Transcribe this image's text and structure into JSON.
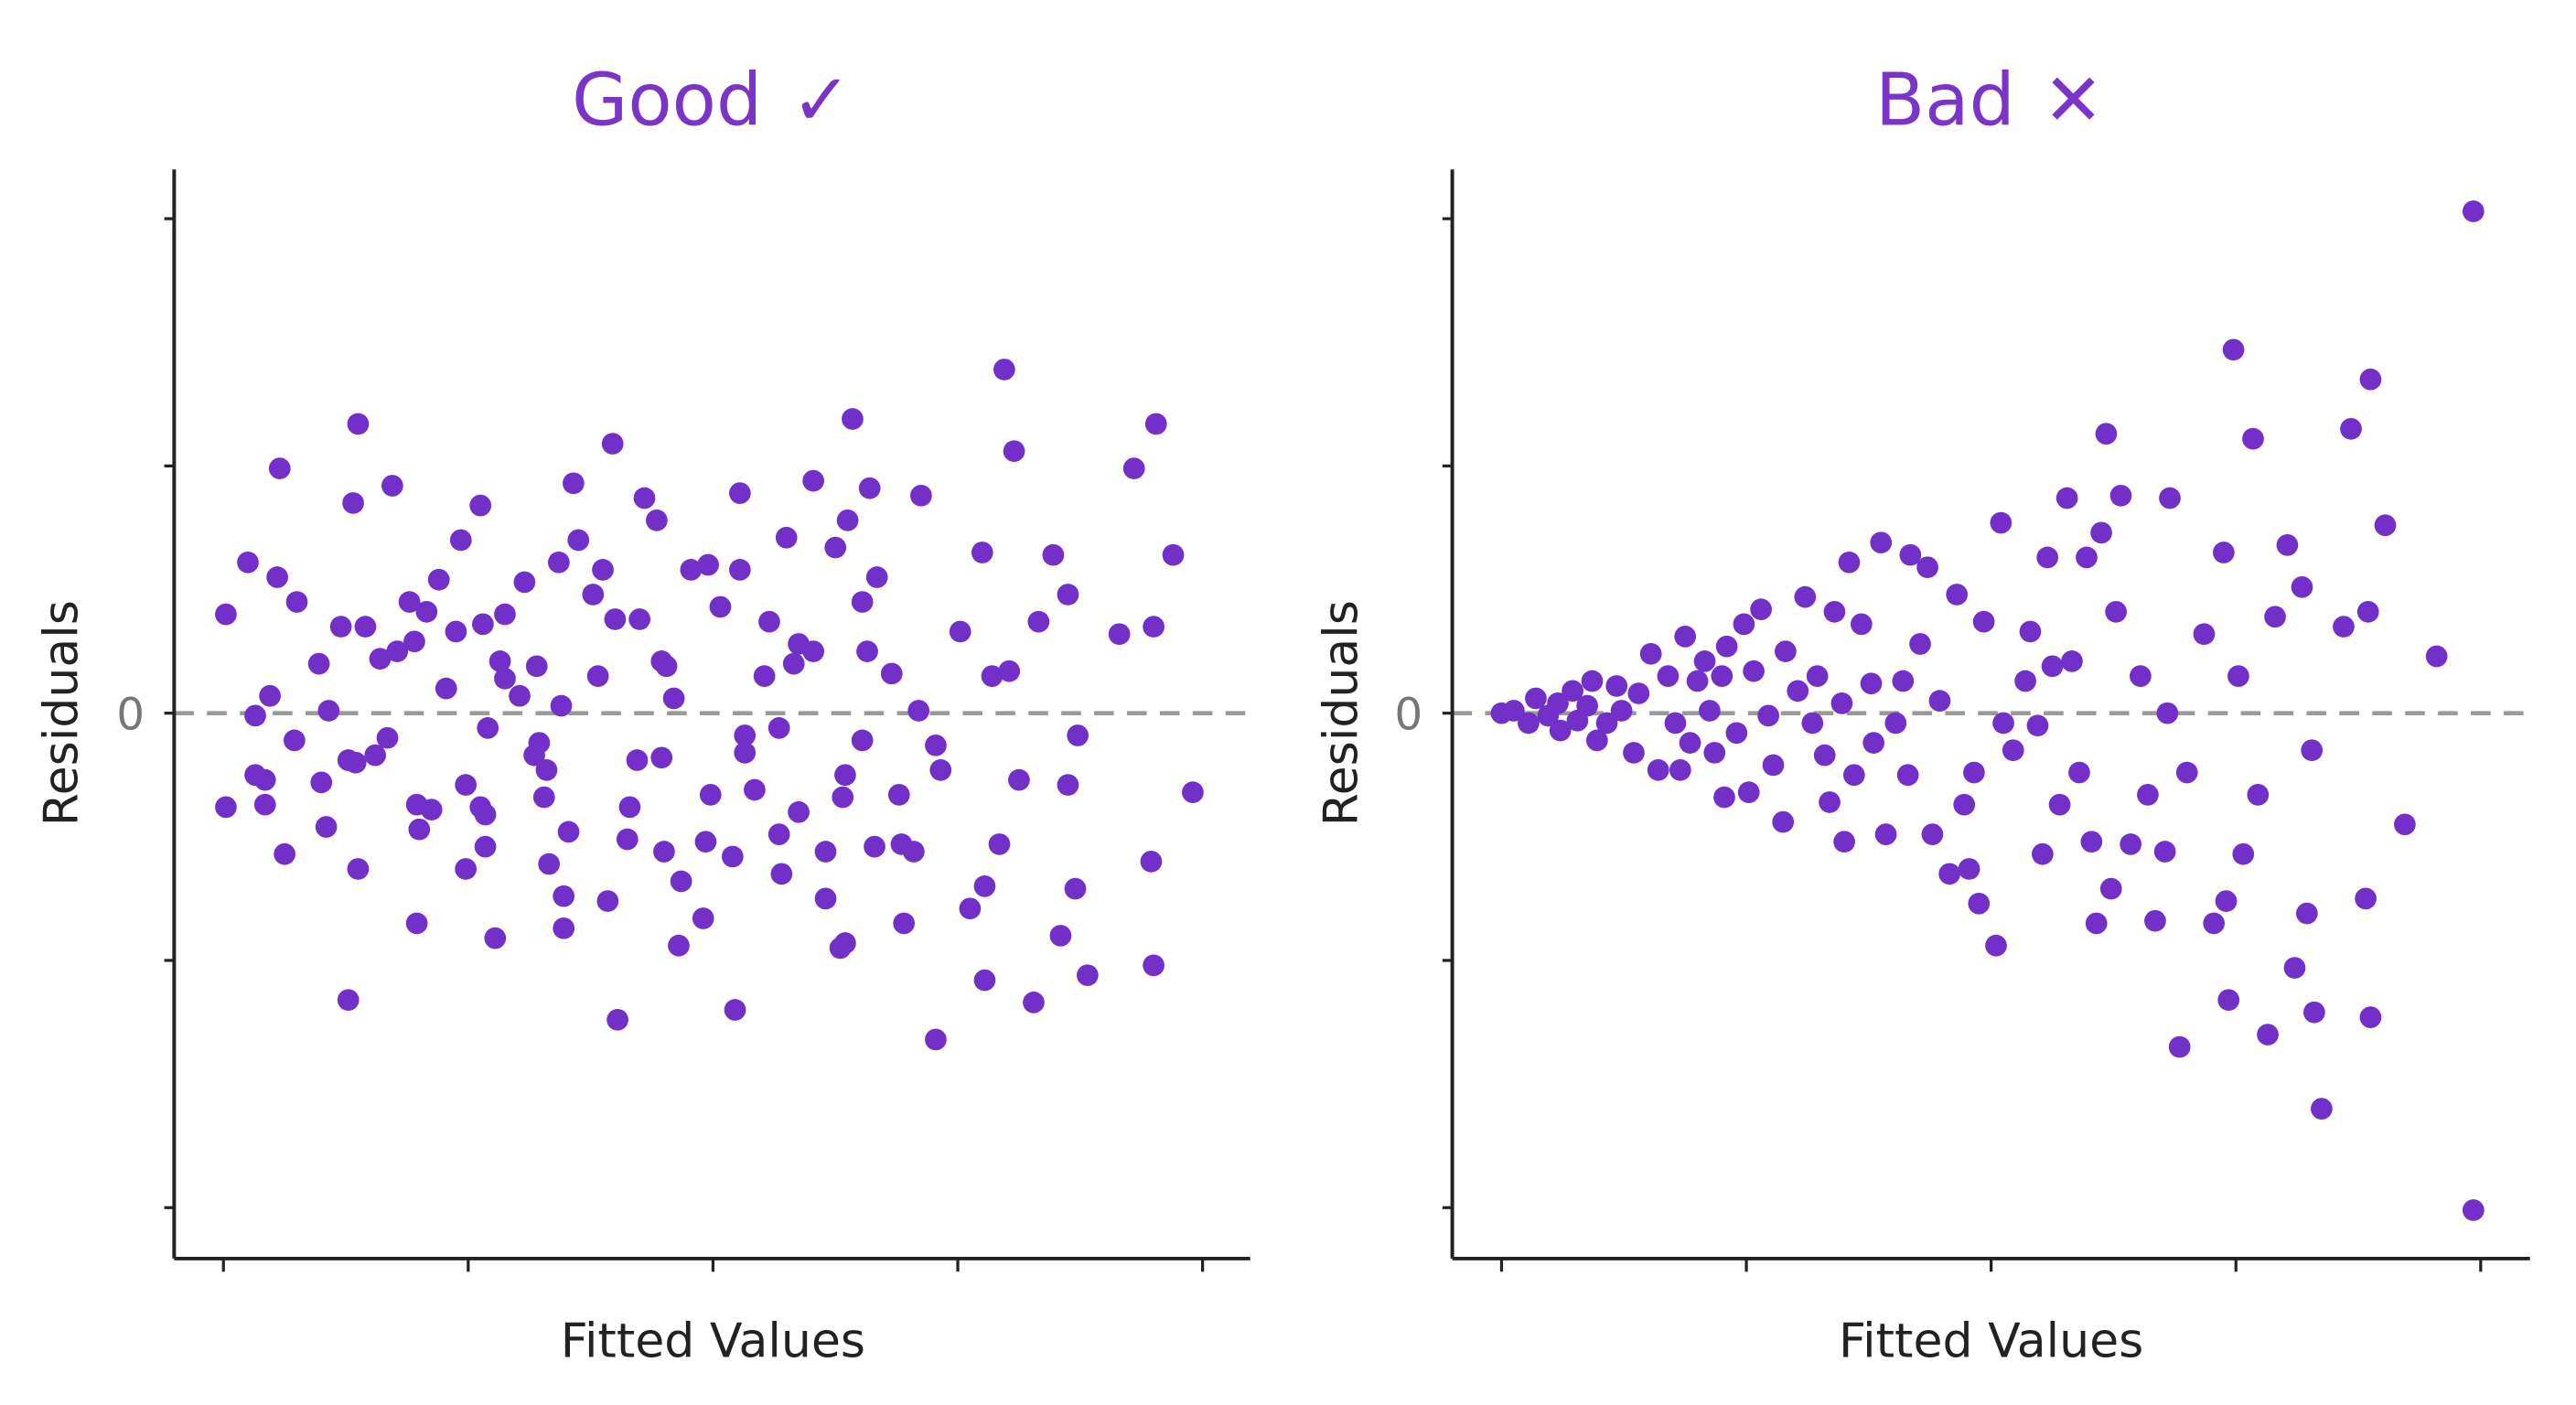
{
  "colors": {
    "point": "#7230c8",
    "title": "#7a35c8",
    "zero_line": "#999999",
    "axis": "#222222"
  },
  "chart_data": [
    {
      "type": "scatter",
      "title": "Good",
      "title_icon": "check-icon",
      "title_mark": "✓",
      "xlabel": "Fitted Values",
      "ylabel": "Residuals",
      "xlim": [
        0,
        4
      ],
      "ylim": [
        -2,
        2
      ],
      "y_tick_labels": {
        "0": "0"
      },
      "reference_line": {
        "y": 0,
        "style": "dashed"
      },
      "grid": false,
      "points": [
        [
          0.01,
          0.4
        ],
        [
          0.1,
          0.61
        ],
        [
          0.23,
          0.99
        ],
        [
          0.22,
          0.55
        ],
        [
          0.3,
          0.45
        ],
        [
          0.55,
          1.17
        ],
        [
          0.53,
          0.85
        ],
        [
          0.69,
          0.92
        ],
        [
          0.01,
          -0.38
        ],
        [
          0.13,
          -0.01
        ],
        [
          0.19,
          0.07
        ],
        [
          0.13,
          -0.25
        ],
        [
          0.17,
          -0.27
        ],
        [
          0.17,
          -0.37
        ],
        [
          0.25,
          -0.57
        ],
        [
          0.29,
          -0.11
        ],
        [
          0.39,
          0.2
        ],
        [
          0.4,
          -0.28
        ],
        [
          0.43,
          0.01
        ],
        [
          0.42,
          -0.46
        ],
        [
          0.48,
          0.35
        ],
        [
          0.51,
          -0.19
        ],
        [
          0.54,
          -0.2
        ],
        [
          0.55,
          -0.63
        ],
        [
          0.58,
          0.35
        ],
        [
          0.51,
          -1.16
        ],
        [
          0.64,
          0.22
        ],
        [
          0.62,
          -0.17
        ],
        [
          0.67,
          -0.1
        ],
        [
          0.71,
          0.25
        ],
        [
          0.76,
          0.45
        ],
        [
          0.78,
          0.29
        ],
        [
          0.79,
          -0.37
        ],
        [
          0.8,
          -0.47
        ],
        [
          0.79,
          -0.85
        ],
        [
          0.83,
          0.41
        ],
        [
          0.85,
          -0.39
        ],
        [
          0.88,
          0.54
        ],
        [
          0.91,
          0.1
        ],
        [
          0.95,
          0.33
        ],
        [
          0.97,
          0.7
        ],
        [
          0.99,
          -0.29
        ],
        [
          0.99,
          -0.63
        ],
        [
          1.05,
          0.84
        ],
        [
          1.06,
          0.36
        ],
        [
          1.07,
          -0.41
        ],
        [
          1.05,
          -0.38
        ],
        [
          1.08,
          -0.06
        ],
        [
          1.07,
          -0.54
        ],
        [
          1.11,
          -0.91
        ],
        [
          1.13,
          0.21
        ],
        [
          1.15,
          0.4
        ],
        [
          1.15,
          0.14
        ],
        [
          1.23,
          0.53
        ],
        [
          1.21,
          0.07
        ],
        [
          1.28,
          0.19
        ],
        [
          1.29,
          -0.12
        ],
        [
          1.27,
          -0.17
        ],
        [
          1.31,
          -0.34
        ],
        [
          1.32,
          -0.23
        ],
        [
          1.33,
          -0.61
        ],
        [
          1.37,
          0.61
        ],
        [
          1.38,
          0.03
        ],
        [
          1.39,
          -0.74
        ],
        [
          1.39,
          -0.87
        ],
        [
          1.41,
          -0.48
        ],
        [
          1.43,
          0.93
        ],
        [
          1.45,
          0.7
        ],
        [
          1.51,
          0.48
        ],
        [
          1.53,
          0.15
        ],
        [
          1.55,
          0.58
        ],
        [
          1.6,
          0.38
        ],
        [
          1.59,
          1.09
        ],
        [
          1.61,
          -1.24
        ],
        [
          1.57,
          -0.76
        ],
        [
          1.66,
          -0.38
        ],
        [
          1.65,
          -0.51
        ],
        [
          1.7,
          0.38
        ],
        [
          1.69,
          -0.19
        ],
        [
          1.72,
          0.87
        ],
        [
          1.77,
          0.78
        ],
        [
          1.79,
          0.21
        ],
        [
          1.79,
          -0.18
        ],
        [
          1.81,
          0.19
        ],
        [
          1.8,
          -0.56
        ],
        [
          1.84,
          0.06
        ],
        [
          1.87,
          -0.68
        ],
        [
          1.86,
          -0.94
        ],
        [
          1.91,
          0.58
        ],
        [
          1.96,
          -0.83
        ],
        [
          1.98,
          0.6
        ],
        [
          1.97,
          -0.52
        ],
        [
          1.99,
          -0.33
        ],
        [
          2.03,
          0.43
        ],
        [
          2.08,
          -0.58
        ],
        [
          2.09,
          -1.2
        ],
        [
          2.11,
          0.89
        ],
        [
          2.11,
          0.58
        ],
        [
          2.13,
          -0.09
        ],
        [
          2.13,
          -0.16
        ],
        [
          2.17,
          -0.31
        ],
        [
          2.21,
          0.15
        ],
        [
          2.23,
          0.37
        ],
        [
          2.27,
          -0.06
        ],
        [
          2.27,
          -0.49
        ],
        [
          2.3,
          0.71
        ],
        [
          2.28,
          -0.65
        ],
        [
          2.33,
          0.2
        ],
        [
          2.35,
          0.28
        ],
        [
          2.35,
          -0.4
        ],
        [
          2.41,
          0.94
        ],
        [
          2.41,
          0.25
        ],
        [
          2.46,
          -0.75
        ],
        [
          2.46,
          -0.56
        ],
        [
          2.5,
          0.67
        ],
        [
          2.52,
          -0.95
        ],
        [
          2.54,
          -0.93
        ],
        [
          2.55,
          0.78
        ],
        [
          2.53,
          -0.34
        ],
        [
          2.54,
          -0.25
        ],
        [
          2.57,
          1.19
        ],
        [
          2.61,
          0.45
        ],
        [
          2.61,
          -0.11
        ],
        [
          2.63,
          0.25
        ],
        [
          2.64,
          0.91
        ],
        [
          2.67,
          0.55
        ],
        [
          2.66,
          -0.54
        ],
        [
          2.73,
          0.16
        ],
        [
          2.76,
          -0.33
        ],
        [
          2.78,
          -0.85
        ],
        [
          2.77,
          -0.53
        ],
        [
          2.82,
          -0.56
        ],
        [
          2.85,
          0.88
        ],
        [
          2.84,
          0.01
        ],
        [
          2.91,
          -1.32
        ],
        [
          2.91,
          -0.13
        ],
        [
          2.93,
          -0.23
        ],
        [
          3.01,
          0.33
        ],
        [
          3.05,
          -0.79
        ],
        [
          3.1,
          0.65
        ],
        [
          3.11,
          -0.7
        ],
        [
          3.11,
          -1.08
        ],
        [
          3.14,
          0.15
        ],
        [
          3.17,
          -0.53
        ],
        [
          3.19,
          1.39
        ],
        [
          3.21,
          0.17
        ],
        [
          3.23,
          1.06
        ],
        [
          3.25,
          -0.27
        ],
        [
          3.31,
          -1.17
        ],
        [
          3.33,
          0.37
        ],
        [
          3.39,
          0.64
        ],
        [
          3.45,
          0.48
        ],
        [
          3.45,
          -0.29
        ],
        [
          3.49,
          -0.09
        ],
        [
          3.48,
          -0.71
        ],
        [
          3.42,
          -0.9
        ],
        [
          3.53,
          -1.06
        ],
        [
          3.66,
          0.32
        ],
        [
          3.72,
          0.99
        ],
        [
          3.8,
          0.35
        ],
        [
          3.81,
          1.17
        ],
        [
          3.79,
          -0.6
        ],
        [
          3.8,
          -1.02
        ],
        [
          3.88,
          0.64
        ],
        [
          3.96,
          -0.32
        ]
      ]
    },
    {
      "type": "scatter",
      "title": "Bad",
      "title_icon": "cross-icon",
      "title_mark": "✕",
      "xlabel": "Fitted Values",
      "ylabel": "Residuals",
      "xlim": [
        0,
        4
      ],
      "ylim": [
        -2,
        2
      ],
      "y_tick_labels": {
        "0": "0"
      },
      "reference_line": {
        "y": 0,
        "style": "dashed"
      },
      "grid": false,
      "points": [
        [
          0.0,
          0.0
        ],
        [
          0.05,
          0.01
        ],
        [
          0.11,
          -0.04
        ],
        [
          0.14,
          0.06
        ],
        [
          0.19,
          -0.01
        ],
        [
          0.23,
          0.04
        ],
        [
          0.24,
          -0.07
        ],
        [
          0.29,
          0.09
        ],
        [
          0.31,
          -0.03
        ],
        [
          0.35,
          0.03
        ],
        [
          0.37,
          0.13
        ],
        [
          0.39,
          -0.11
        ],
        [
          0.43,
          -0.04
        ],
        [
          0.47,
          0.11
        ],
        [
          0.49,
          0.01
        ],
        [
          0.54,
          -0.16
        ],
        [
          0.56,
          0.08
        ],
        [
          0.61,
          0.24
        ],
        [
          0.64,
          -0.23
        ],
        [
          0.68,
          0.15
        ],
        [
          0.71,
          -0.04
        ],
        [
          0.73,
          -0.23
        ],
        [
          0.75,
          0.31
        ],
        [
          0.77,
          -0.12
        ],
        [
          0.8,
          0.13
        ],
        [
          0.83,
          0.21
        ],
        [
          0.85,
          0.01
        ],
        [
          0.87,
          -0.16
        ],
        [
          0.9,
          0.15
        ],
        [
          0.91,
          -0.34
        ],
        [
          0.92,
          0.27
        ],
        [
          0.96,
          -0.08
        ],
        [
          0.99,
          0.36
        ],
        [
          1.01,
          -0.32
        ],
        [
          1.03,
          0.17
        ],
        [
          1.06,
          0.42
        ],
        [
          1.09,
          -0.01
        ],
        [
          1.11,
          -0.21
        ],
        [
          1.15,
          -0.44
        ],
        [
          1.16,
          0.25
        ],
        [
          1.21,
          0.09
        ],
        [
          1.24,
          0.47
        ],
        [
          1.27,
          -0.04
        ],
        [
          1.29,
          0.15
        ],
        [
          1.32,
          -0.17
        ],
        [
          1.34,
          -0.36
        ],
        [
          1.36,
          0.41
        ],
        [
          1.39,
          0.04
        ],
        [
          1.4,
          -0.52
        ],
        [
          1.42,
          0.61
        ],
        [
          1.44,
          -0.25
        ],
        [
          1.47,
          0.36
        ],
        [
          1.51,
          0.12
        ],
        [
          1.52,
          -0.12
        ],
        [
          1.55,
          0.69
        ],
        [
          1.57,
          -0.49
        ],
        [
          1.61,
          -0.04
        ],
        [
          1.64,
          0.13
        ],
        [
          1.66,
          -0.25
        ],
        [
          1.67,
          0.64
        ],
        [
          1.71,
          0.28
        ],
        [
          1.74,
          0.59
        ],
        [
          1.76,
          -0.49
        ],
        [
          1.79,
          0.05
        ],
        [
          1.83,
          -0.65
        ],
        [
          1.86,
          0.48
        ],
        [
          1.89,
          -0.37
        ],
        [
          1.91,
          -0.63
        ],
        [
          1.93,
          -0.24
        ],
        [
          1.95,
          -0.77
        ],
        [
          1.97,
          0.37
        ],
        [
          2.02,
          -0.94
        ],
        [
          2.04,
          0.77
        ],
        [
          2.05,
          -0.04
        ],
        [
          2.09,
          -0.15
        ],
        [
          2.14,
          0.13
        ],
        [
          2.16,
          0.33
        ],
        [
          2.19,
          -0.05
        ],
        [
          2.21,
          -0.57
        ],
        [
          2.23,
          0.63
        ],
        [
          2.25,
          0.19
        ],
        [
          2.28,
          -0.37
        ],
        [
          2.31,
          0.87
        ],
        [
          2.33,
          0.21
        ],
        [
          2.36,
          -0.24
        ],
        [
          2.39,
          0.63
        ],
        [
          2.41,
          -0.52
        ],
        [
          2.43,
          -0.85
        ],
        [
          2.45,
          0.73
        ],
        [
          2.47,
          1.13
        ],
        [
          2.49,
          -0.71
        ],
        [
          2.51,
          0.41
        ],
        [
          2.53,
          0.88
        ],
        [
          2.57,
          -0.53
        ],
        [
          2.61,
          0.15
        ],
        [
          2.64,
          -0.33
        ],
        [
          2.67,
          -0.84
        ],
        [
          2.71,
          -0.56
        ],
        [
          2.72,
          0.0
        ],
        [
          2.73,
          0.87
        ],
        [
          2.77,
          -1.35
        ],
        [
          2.8,
          -0.24
        ],
        [
          2.87,
          0.32
        ],
        [
          2.91,
          -0.85
        ],
        [
          2.95,
          0.65
        ],
        [
          2.96,
          -0.76
        ],
        [
          2.97,
          -1.16
        ],
        [
          2.99,
          1.47
        ],
        [
          3.01,
          0.15
        ],
        [
          3.03,
          -0.57
        ],
        [
          3.07,
          1.11
        ],
        [
          3.09,
          -0.33
        ],
        [
          3.13,
          -1.3
        ],
        [
          3.16,
          0.39
        ],
        [
          3.21,
          0.68
        ],
        [
          3.24,
          -1.03
        ],
        [
          3.27,
          0.51
        ],
        [
          3.29,
          -0.81
        ],
        [
          3.31,
          -0.15
        ],
        [
          3.32,
          -1.21
        ],
        [
          3.35,
          -1.6
        ],
        [
          3.44,
          0.35
        ],
        [
          3.47,
          1.15
        ],
        [
          3.53,
          -0.75
        ],
        [
          3.54,
          0.41
        ],
        [
          3.55,
          1.35
        ],
        [
          3.55,
          -1.23
        ],
        [
          3.61,
          0.76
        ],
        [
          3.69,
          -0.45
        ],
        [
          3.82,
          0.23
        ],
        [
          3.97,
          2.03
        ],
        [
          3.97,
          -2.01
        ]
      ]
    }
  ]
}
